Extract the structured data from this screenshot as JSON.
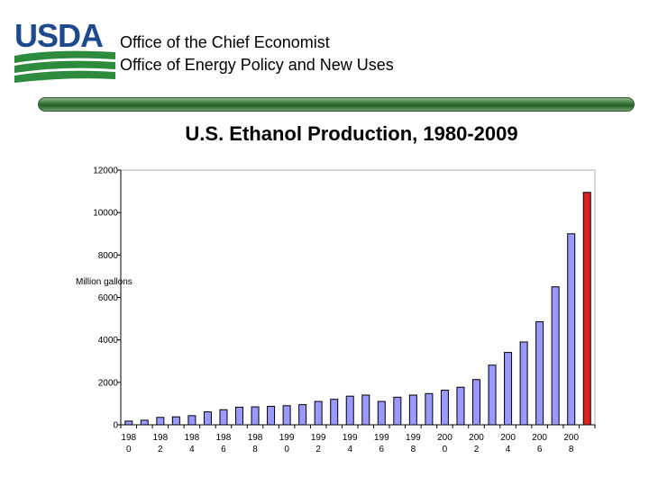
{
  "header": {
    "logo_text": "USDA",
    "office_line_1": "Office of the Chief Economist",
    "office_line_2": "Office of Energy Policy and New Uses"
  },
  "colors": {
    "bar_fill": "#9999ff",
    "highlight_fill": "#dd2222",
    "logo_blue": "#1e4a8c",
    "logo_green": "#2e8b3e"
  },
  "chart_data": {
    "type": "bar",
    "title": "U.S. Ethanol Production, 1980-2009",
    "xlabel": "",
    "ylabel": "Million gallons",
    "ylim": [
      0,
      12000
    ],
    "yticks": [
      0,
      2000,
      4000,
      6000,
      8000,
      10000,
      12000
    ],
    "categories": [
      "1980",
      "1981",
      "1982",
      "1983",
      "1984",
      "1985",
      "1986",
      "1987",
      "1988",
      "1989",
      "1990",
      "1991",
      "1992",
      "1993",
      "1994",
      "1995",
      "1996",
      "1997",
      "1998",
      "1999",
      "2000",
      "2001",
      "2002",
      "2003",
      "2004",
      "2005",
      "2006",
      "2007",
      "2008",
      "2009"
    ],
    "x_tick_labels": [
      {
        "top": "198",
        "bottom": "0"
      },
      {
        "top": "198",
        "bottom": "2"
      },
      {
        "top": "198",
        "bottom": "4"
      },
      {
        "top": "198",
        "bottom": "6"
      },
      {
        "top": "198",
        "bottom": "8"
      },
      {
        "top": "199",
        "bottom": "0"
      },
      {
        "top": "199",
        "bottom": "2"
      },
      {
        "top": "199",
        "bottom": "4"
      },
      {
        "top": "199",
        "bottom": "6"
      },
      {
        "top": "199",
        "bottom": "8"
      },
      {
        "top": "200",
        "bottom": "0"
      },
      {
        "top": "200",
        "bottom": "2"
      },
      {
        "top": "200",
        "bottom": "4"
      },
      {
        "top": "200",
        "bottom": "6"
      },
      {
        "top": "200",
        "bottom": "8"
      }
    ],
    "values": [
      175,
      215,
      350,
      375,
      430,
      610,
      710,
      830,
      845,
      870,
      900,
      950,
      1100,
      1200,
      1350,
      1400,
      1100,
      1300,
      1400,
      1470,
      1630,
      1770,
      2130,
      2810,
      3410,
      3900,
      4855,
      6500,
      9000,
      10950
    ],
    "highlight_index": 29
  }
}
